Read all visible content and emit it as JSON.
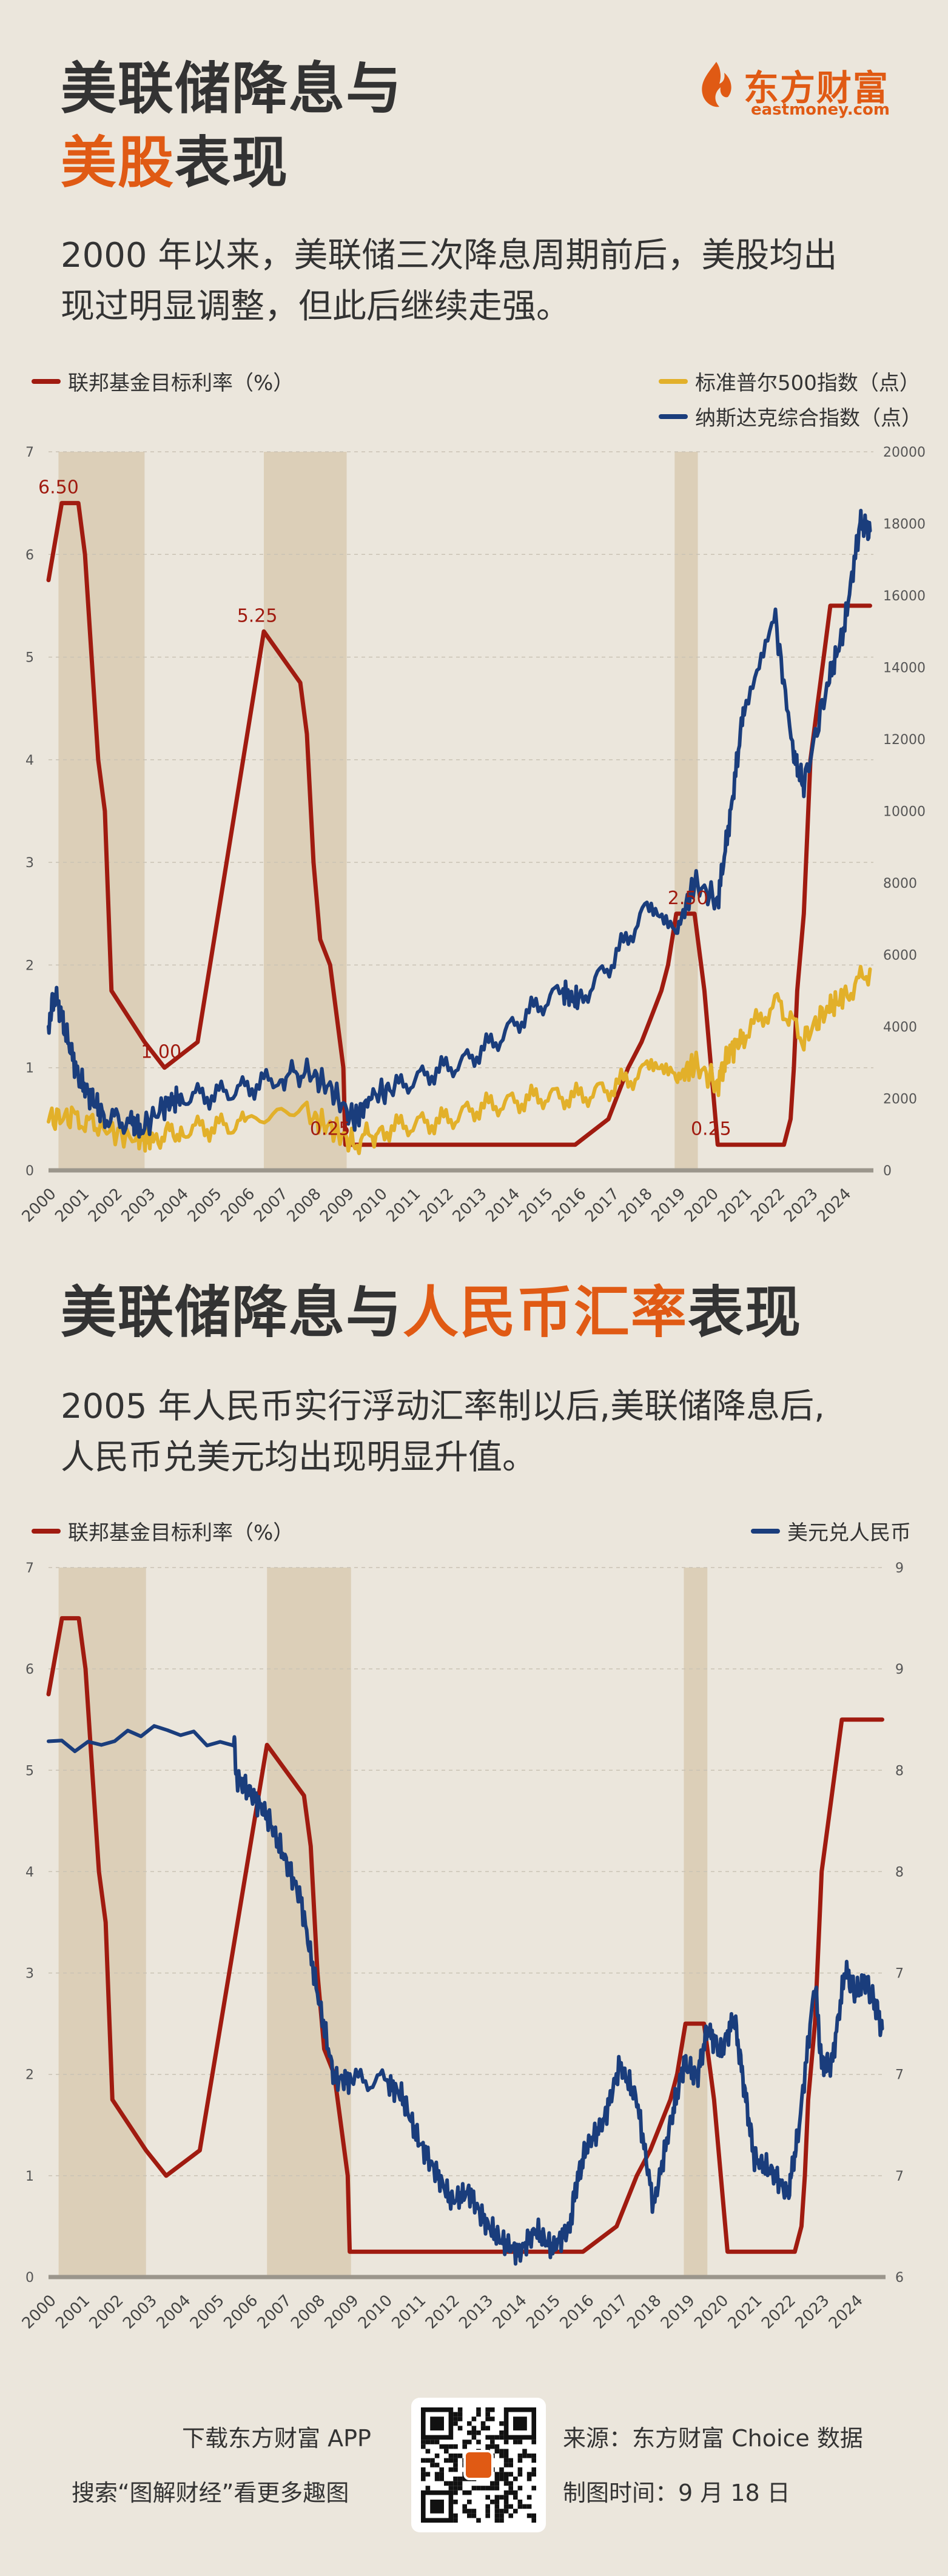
{
  "brand": {
    "name_cn": "东方财富",
    "name_en": "eastmoney.com"
  },
  "section1": {
    "title_line1": "美联储降息与",
    "title_hl": "美股",
    "title_rest": "表现",
    "subtitle_line1": "2000 年以来，美联储三次降息周期前后，美股均出",
    "subtitle_line2": "现过明显调整，但此后继续走强。"
  },
  "section2": {
    "title_pre": "美联储降息与",
    "title_hl": "人民币汇率",
    "title_rest": "表现",
    "subtitle_line1": "2005 年人民币实行浮动汇率制以后,美联储降息后,",
    "subtitle_line2": "人民币兑美元均出现明显升值。"
  },
  "colors": {
    "fed": "#a01b10",
    "sp": "#e2b02a",
    "nasdaq": "#1a3d7c",
    "shade": "#dccfb8",
    "accent": "#e05a14"
  },
  "chart_data": [
    {
      "type": "line",
      "title": "",
      "x_range": [
        2000,
        2024.9
      ],
      "x_ticks": [
        "2000",
        "2001",
        "2002",
        "2003",
        "2004",
        "2005",
        "2006",
        "2007",
        "2008",
        "2009",
        "2010",
        "2011",
        "2012",
        "2013",
        "2014",
        "2015",
        "2016",
        "2017",
        "2018",
        "2019",
        "2020",
        "2021",
        "2022",
        "2023",
        "2024"
      ],
      "y_left": {
        "label": "联邦基金目标利率（%）",
        "range": [
          0,
          7
        ],
        "ticks": [
          "0",
          "1",
          "2",
          "3",
          "4",
          "5",
          "6",
          "7"
        ]
      },
      "y_right": {
        "label": "",
        "range": [
          0,
          20000
        ],
        "ticks": [
          "0",
          "2000",
          "4000",
          "6000",
          "8000",
          "10000",
          "12000",
          "14000",
          "16000",
          "18000",
          "20000"
        ]
      },
      "shaded_periods": [
        [
          2000.3,
          2002.9
        ],
        [
          2006.5,
          2009.0
        ],
        [
          2018.9,
          2019.6
        ]
      ],
      "annotations": [
        {
          "x": 2000.3,
          "y": 6.5,
          "text": "6.50"
        },
        {
          "x": 2003.4,
          "y": 1.0,
          "text": "1.00"
        },
        {
          "x": 2006.3,
          "y": 5.25,
          "text": "5.25"
        },
        {
          "x": 2008.5,
          "y": 0.25,
          "text": "0.25"
        },
        {
          "x": 2019.3,
          "y": 2.5,
          "text": "2.50"
        },
        {
          "x": 2020.0,
          "y": 0.25,
          "text": "0.25"
        }
      ],
      "series": [
        {
          "name": "联邦基金目标利率（%）",
          "axis": "left",
          "x": [
            2000.0,
            2000.4,
            2000.9,
            2001.1,
            2001.3,
            2001.5,
            2001.7,
            2001.9,
            2002.9,
            2003.5,
            2004.5,
            2005.0,
            2005.5,
            2006.0,
            2006.5,
            2007.6,
            2007.8,
            2008.0,
            2008.2,
            2008.5,
            2008.9,
            2008.96,
            2015.9,
            2016.9,
            2017.2,
            2017.5,
            2017.9,
            2018.2,
            2018.5,
            2018.7,
            2018.95,
            2019.5,
            2019.7,
            2019.8,
            2020.2,
            2022.2,
            2022.4,
            2022.5,
            2022.6,
            2022.8,
            2022.9,
            2023.0,
            2023.2,
            2023.4,
            2023.6,
            2024.8
          ],
          "values": [
            5.75,
            6.5,
            6.5,
            6.0,
            5.0,
            4.0,
            3.5,
            1.75,
            1.25,
            1.0,
            1.25,
            2.25,
            3.25,
            4.25,
            5.25,
            4.75,
            4.25,
            3.0,
            2.25,
            2.0,
            1.0,
            0.25,
            0.25,
            0.5,
            0.75,
            1.0,
            1.25,
            1.5,
            1.75,
            2.0,
            2.5,
            2.5,
            2.0,
            1.75,
            0.25,
            0.25,
            0.5,
            1.0,
            1.75,
            2.5,
            3.25,
            4.0,
            4.5,
            5.0,
            5.5,
            5.5
          ]
        },
        {
          "name": "标准普尔500指数（点）",
          "axis": "right",
          "x": [
            2000.0,
            2000.7,
            2001.5,
            2002.7,
            2003.2,
            2004.0,
            2005.0,
            2006.0,
            2007.8,
            2008.5,
            2009.2,
            2010.0,
            2011.0,
            2012.0,
            2013.0,
            2014.0,
            2015.0,
            2016.0,
            2017.0,
            2018.0,
            2018.9,
            2019.5,
            2020.2,
            2020.5,
            2021.0,
            2022.0,
            2022.8,
            2023.5,
            2024.0,
            2024.8
          ],
          "values": [
            1450,
            1480,
            1200,
            850,
            900,
            1130,
            1210,
            1300,
            1550,
            1200,
            750,
            1120,
            1280,
            1400,
            1750,
            1900,
            2060,
            2040,
            2300,
            2750,
            2500,
            2950,
            2400,
            3200,
            3750,
            4700,
            3650,
            4500,
            4800,
            5600
          ]
        },
        {
          "name": "纳斯达克综合指数（点）",
          "axis": "right",
          "x": [
            2000.0,
            2000.2,
            2000.5,
            2000.9,
            2001.3,
            2001.7,
            2002.5,
            2002.8,
            2003.5,
            2004.0,
            2005.0,
            2006.0,
            2007.0,
            2007.8,
            2008.5,
            2009.2,
            2009.8,
            2010.5,
            2011.5,
            2012.5,
            2013.5,
            2014.5,
            2015.5,
            2016.0,
            2017.0,
            2018.0,
            2018.9,
            2019.5,
            2020.2,
            2020.6,
            2021.0,
            2021.9,
            2022.5,
            2022.8,
            2023.5,
            2024.0,
            2024.5,
            2024.8
          ],
          "values": [
            4100,
            4900,
            3900,
            2600,
            2000,
            1500,
            1300,
            1150,
            1800,
            2050,
            2100,
            2300,
            2600,
            2750,
            2300,
            1400,
            2100,
            2300,
            2700,
            3000,
            3600,
            4400,
            5000,
            4700,
            5800,
            7200,
            6500,
            8000,
            7500,
            10000,
            13000,
            15600,
            11500,
            10700,
            13500,
            15000,
            18000,
            17800
          ]
        }
      ]
    },
    {
      "type": "line",
      "title": "",
      "x_range": [
        2000,
        2024.9
      ],
      "x_ticks": [
        "2000",
        "2001",
        "2002",
        "2003",
        "2004",
        "2005",
        "2006",
        "2007",
        "2008",
        "2009",
        "2010",
        "2011",
        "2012",
        "2013",
        "2014",
        "2015",
        "2016",
        "2017",
        "2018",
        "2019",
        "2020",
        "2021",
        "2022",
        "2023",
        "2024"
      ],
      "y_left": {
        "label": "联邦基金目标利率（%）",
        "range": [
          0,
          7
        ],
        "ticks": [
          "0",
          "1",
          "2",
          "3",
          "4",
          "5",
          "6",
          "7"
        ]
      },
      "y_right": {
        "label": "",
        "range": [
          6,
          9
        ],
        "ticks": [
          "6",
          "7",
          "7",
          "7",
          "8",
          "8",
          "9",
          "9"
        ]
      },
      "shaded_periods": [
        [
          2000.3,
          2002.9
        ],
        [
          2006.5,
          2009.0
        ],
        [
          2018.9,
          2019.6
        ]
      ],
      "series": [
        {
          "name": "联邦基金目标利率（%）",
          "axis": "left",
          "x": [
            2000.0,
            2000.4,
            2000.9,
            2001.1,
            2001.3,
            2001.5,
            2001.7,
            2001.9,
            2002.9,
            2003.5,
            2004.5,
            2005.0,
            2005.5,
            2006.0,
            2006.5,
            2007.6,
            2007.8,
            2008.0,
            2008.2,
            2008.5,
            2008.9,
            2008.96,
            2015.9,
            2016.9,
            2017.2,
            2017.5,
            2017.9,
            2018.2,
            2018.5,
            2018.7,
            2018.95,
            2019.5,
            2019.7,
            2019.8,
            2020.2,
            2022.2,
            2022.4,
            2022.5,
            2022.6,
            2022.8,
            2022.9,
            2023.0,
            2023.2,
            2023.4,
            2023.6,
            2024.8
          ],
          "values": [
            5.75,
            6.5,
            6.5,
            6.0,
            5.0,
            4.0,
            3.5,
            1.75,
            1.25,
            1.0,
            1.25,
            2.25,
            3.25,
            4.25,
            5.25,
            4.75,
            4.25,
            3.0,
            2.25,
            2.0,
            1.0,
            0.25,
            0.25,
            0.5,
            0.75,
            1.0,
            1.25,
            1.5,
            1.75,
            2.0,
            2.5,
            2.5,
            2.0,
            1.75,
            0.25,
            0.25,
            0.5,
            1.0,
            1.75,
            2.5,
            3.25,
            4.0,
            4.5,
            5.0,
            5.5,
            5.5
          ]
        },
        {
          "name": "美元兑人民币",
          "axis": "right",
          "x": [
            2000.0,
            2005.5,
            2005.6,
            2006.0,
            2006.5,
            2007.0,
            2007.5,
            2008.0,
            2008.5,
            2009.0,
            2010.0,
            2010.5,
            2011.0,
            2011.5,
            2012.0,
            2012.5,
            2013.0,
            2013.5,
            2014.0,
            2014.5,
            2015.0,
            2015.5,
            2015.7,
            2016.0,
            2016.5,
            2017.0,
            2017.5,
            2018.0,
            2018.5,
            2018.9,
            2019.3,
            2019.6,
            2020.0,
            2020.4,
            2020.7,
            2021.0,
            2021.5,
            2022.0,
            2022.3,
            2022.8,
            2023.0,
            2023.3,
            2023.7,
            2024.0,
            2024.3,
            2024.6,
            2024.8
          ],
          "values": [
            8.28,
            8.28,
            8.11,
            8.05,
            7.95,
            7.78,
            7.6,
            7.2,
            6.84,
            6.83,
            6.83,
            6.77,
            6.58,
            6.45,
            6.32,
            6.36,
            6.23,
            6.15,
            6.1,
            6.2,
            6.12,
            6.21,
            6.39,
            6.55,
            6.65,
            6.9,
            6.75,
            6.3,
            6.65,
            6.9,
            6.85,
            7.05,
            6.95,
            7.1,
            6.8,
            6.5,
            6.45,
            6.35,
            6.6,
            7.25,
            6.9,
            6.9,
            7.3,
            7.2,
            7.25,
            7.15,
            7.05
          ]
        }
      ]
    }
  ],
  "footer": {
    "line1": "下载东方财富 APP",
    "line2": "搜索“图解财经”看更多趣图",
    "source": "来源：东方财富 Choice 数据",
    "date": "制图时间：9 月 18 日"
  }
}
